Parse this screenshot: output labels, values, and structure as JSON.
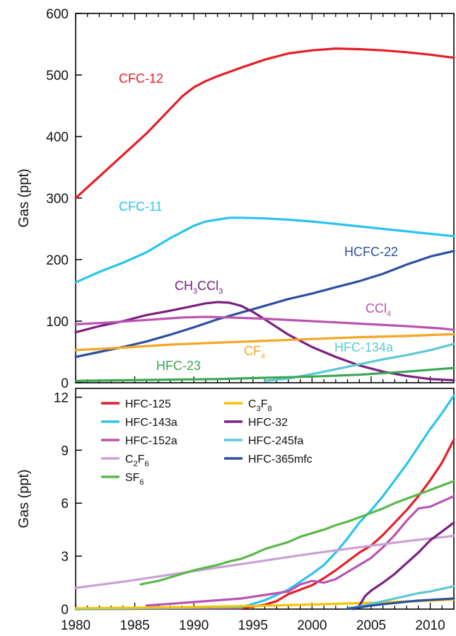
{
  "chart_data": [
    {
      "type": "line",
      "ylabel": "Gas (ppt)",
      "xlim": [
        1980,
        2012
      ],
      "ylim": [
        0,
        600
      ],
      "yticks": [
        0,
        100,
        200,
        300,
        400,
        500,
        600
      ],
      "grid": false,
      "legend": "inline labels",
      "series": [
        {
          "name": "CFC-12",
          "label_parts": [
            {
              "t": "CFC-12"
            }
          ],
          "color": "#e41e26",
          "x": [
            1980,
            1982,
            1984,
            1986,
            1988,
            1989,
            1990,
            1991,
            1992,
            1994,
            1996,
            1998,
            2000,
            2002,
            2004,
            2006,
            2008,
            2010,
            2012
          ],
          "y": [
            300,
            335,
            370,
            405,
            445,
            465,
            480,
            490,
            498,
            512,
            525,
            535,
            540,
            543,
            542,
            540,
            537,
            533,
            528
          ]
        },
        {
          "name": "CFC-11",
          "label_parts": [
            {
              "t": "CFC-11"
            }
          ],
          "color": "#29c4ee",
          "x": [
            1980,
            1982,
            1984,
            1986,
            1988,
            1990,
            1991,
            1992,
            1993,
            1994,
            1996,
            1998,
            2000,
            2002,
            2004,
            2006,
            2008,
            2010,
            2012
          ],
          "y": [
            163,
            180,
            195,
            212,
            235,
            255,
            262,
            265,
            268,
            268,
            267,
            265,
            262,
            258,
            254,
            250,
            246,
            242,
            238
          ]
        },
        {
          "name": "HCFC-22",
          "label_parts": [
            {
              "t": "HCFC-22"
            }
          ],
          "color": "#2b4fa0",
          "x": [
            1980,
            1982,
            1984,
            1986,
            1988,
            1990,
            1992,
            1994,
            1996,
            1998,
            2000,
            2002,
            2004,
            2006,
            2008,
            2010,
            2012
          ],
          "y": [
            42,
            50,
            58,
            67,
            78,
            90,
            103,
            114,
            125,
            136,
            145,
            155,
            165,
            177,
            192,
            205,
            214
          ]
        },
        {
          "name": "CH3CCl3",
          "label_parts": [
            {
              "t": "CH"
            },
            {
              "t": "3",
              "sub": true
            },
            {
              "t": "CCl"
            },
            {
              "t": "3",
              "sub": true
            }
          ],
          "color": "#7b1f80",
          "x": [
            1980,
            1982,
            1984,
            1986,
            1988,
            1990,
            1991,
            1992,
            1993,
            1994,
            1995,
            1996,
            1998,
            2000,
            2002,
            2004,
            2006,
            2008,
            2010,
            2012
          ],
          "y": [
            82,
            92,
            100,
            110,
            117,
            125,
            129,
            131,
            130,
            125,
            115,
            103,
            78,
            58,
            42,
            28,
            18,
            11,
            6,
            4
          ]
        },
        {
          "name": "CCl4",
          "label_parts": [
            {
              "t": "CCl"
            },
            {
              "t": "4",
              "sub": true
            }
          ],
          "color": "#b854b0",
          "x": [
            1980,
            1983,
            1986,
            1989,
            1991,
            1993,
            1996,
            1999,
            2002,
            2005,
            2008,
            2011,
            2012
          ],
          "y": [
            95,
            98,
            102,
            106,
            107,
            106,
            104,
            101,
            98,
            95,
            92,
            88,
            86
          ]
        },
        {
          "name": "CF4",
          "label_parts": [
            {
              "t": "CF"
            },
            {
              "t": "4",
              "sub": true
            }
          ],
          "color": "#f5a623",
          "x": [
            1980,
            1984,
            1988,
            1992,
            1996,
            2000,
            2004,
            2008,
            2012
          ],
          "y": [
            53,
            57,
            62,
            65,
            68,
            71,
            74,
            76,
            79
          ]
        },
        {
          "name": "HFC-134a",
          "label_parts": [
            {
              "t": "HFC-134a"
            }
          ],
          "color": "#5bc8d4",
          "x": [
            1996,
            1998,
            2000,
            2002,
            2004,
            2006,
            2008,
            2010,
            2012
          ],
          "y": [
            3,
            7,
            14,
            22,
            30,
            38,
            45,
            53,
            63
          ]
        },
        {
          "name": "HFC-23",
          "label_parts": [
            {
              "t": "HFC-23"
            }
          ],
          "color": "#3aa655",
          "x": [
            1980,
            1984,
            1988,
            1992,
            1996,
            2000,
            2004,
            2008,
            2012
          ],
          "y": [
            3,
            4,
            5,
            6,
            8,
            10,
            13,
            18,
            24
          ]
        }
      ]
    },
    {
      "type": "line",
      "ylabel": "Gas (ppt)",
      "xlim": [
        1980,
        2012
      ],
      "ylim": [
        0,
        12.5
      ],
      "yticks": [
        0,
        3,
        6,
        9,
        12
      ],
      "xticks": [
        1980,
        1985,
        1990,
        1995,
        2000,
        2005,
        2010
      ],
      "grid": false,
      "legend": "top-left",
      "series": [
        {
          "name": "HFC-125",
          "label_parts": [
            {
              "t": "HFC-125"
            }
          ],
          "color": "#e41e26",
          "x": [
            1980,
            1994,
            1996,
            1997,
            1998,
            1999,
            2000,
            2001,
            2002,
            2003,
            2004,
            2005,
            2006,
            2007,
            2008,
            2009,
            2010,
            2011,
            2012
          ],
          "y": [
            0,
            0.05,
            0.25,
            0.45,
            0.85,
            1.1,
            1.35,
            1.75,
            2.2,
            2.7,
            3.2,
            3.6,
            4.2,
            4.9,
            5.6,
            6.4,
            7.3,
            8.3,
            9.6
          ]
        },
        {
          "name": "HFC-143a",
          "label_parts": [
            {
              "t": "HFC-143a"
            }
          ],
          "color": "#29c4ee",
          "x": [
            1980,
            1994,
            1996,
            1998,
            2000,
            2001,
            2002,
            2003,
            2004,
            2005,
            2006,
            2007,
            2008,
            2009,
            2010,
            2011,
            2012
          ],
          "y": [
            0,
            0.1,
            0.5,
            1.1,
            2.0,
            2.5,
            3.2,
            4.0,
            4.9,
            5.6,
            6.4,
            7.3,
            8.2,
            9.2,
            10.2,
            11.1,
            12.1
          ]
        },
        {
          "name": "HFC-152a",
          "label_parts": [
            {
              "t": "HFC-152a"
            }
          ],
          "color": "#b854b0",
          "x": [
            1986,
            1988,
            1990,
            1992,
            1994,
            1996,
            1998,
            1999,
            2000,
            2001,
            2002,
            2003,
            2004,
            2005,
            2006,
            2007,
            2008,
            2009,
            2010,
            2011,
            2012
          ],
          "y": [
            0.2,
            0.3,
            0.4,
            0.5,
            0.6,
            0.8,
            1.0,
            1.4,
            1.6,
            1.5,
            1.7,
            2.1,
            2.5,
            2.9,
            3.5,
            4.2,
            5.0,
            5.7,
            5.8,
            6.1,
            6.4
          ]
        },
        {
          "name": "C2F6",
          "label_parts": [
            {
              "t": "C"
            },
            {
              "t": "2",
              "sub": true
            },
            {
              "t": "F"
            },
            {
              "t": "6",
              "sub": true
            }
          ],
          "color": "#c9a0d6",
          "x": [
            1980,
            1984,
            1988,
            1992,
            1996,
            2000,
            2004,
            2008,
            2012
          ],
          "y": [
            1.2,
            1.55,
            1.95,
            2.35,
            2.75,
            3.15,
            3.5,
            3.85,
            4.15
          ]
        },
        {
          "name": "SF6",
          "label_parts": [
            {
              "t": "SF"
            },
            {
              "t": "6",
              "sub": true
            }
          ],
          "color": "#5ab848",
          "x": [
            1985.5,
            1987,
            1988,
            1989,
            1990,
            1991,
            1992,
            1993,
            1994,
            1995,
            1996,
            1997,
            1998,
            1999,
            2000,
            2001,
            2002,
            2003,
            2004,
            2005,
            2006,
            2007,
            2008,
            2009,
            2010,
            2011,
            2012
          ],
          "y": [
            1.4,
            1.6,
            1.8,
            2.0,
            2.2,
            2.35,
            2.5,
            2.7,
            2.85,
            3.1,
            3.4,
            3.6,
            3.8,
            4.1,
            4.3,
            4.5,
            4.75,
            4.95,
            5.2,
            5.45,
            5.7,
            6.0,
            6.25,
            6.5,
            6.75,
            7.0,
            7.25
          ]
        },
        {
          "name": "C3F8",
          "label_parts": [
            {
              "t": "C"
            },
            {
              "t": "3",
              "sub": true
            },
            {
              "t": "F"
            },
            {
              "t": "8",
              "sub": true
            }
          ],
          "color": "#f5c400",
          "x": [
            1980,
            1985,
            1990,
            1995,
            2000,
            2005,
            2010,
            2012
          ],
          "y": [
            0.05,
            0.08,
            0.12,
            0.18,
            0.26,
            0.36,
            0.48,
            0.55
          ]
        },
        {
          "name": "HFC-32",
          "label_parts": [
            {
              "t": "HFC-32"
            }
          ],
          "color": "#7b1f80",
          "x": [
            2003.5,
            2004,
            2004.5,
            2005,
            2006,
            2007,
            2008,
            2009,
            2010,
            2011,
            2012
          ],
          "y": [
            0.0,
            0.2,
            0.75,
            1.05,
            1.5,
            2.0,
            2.6,
            3.2,
            3.9,
            4.4,
            4.9
          ]
        },
        {
          "name": "HFC-245fa",
          "label_parts": [
            {
              "t": "HFC-245fa"
            }
          ],
          "color": "#5bc8d4",
          "x": [
            2003,
            2004,
            2005,
            2006,
            2007,
            2008,
            2009,
            2010,
            2011,
            2012
          ],
          "y": [
            0.05,
            0.15,
            0.3,
            0.45,
            0.6,
            0.75,
            0.9,
            1.0,
            1.15,
            1.3
          ]
        },
        {
          "name": "HFC-365mfc",
          "label_parts": [
            {
              "t": "HFC-365mfc"
            }
          ],
          "color": "#2b4fa0",
          "x": [
            2003,
            2004,
            2005,
            2006,
            2007,
            2008,
            2009,
            2010,
            2011,
            2012
          ],
          "y": [
            0.02,
            0.1,
            0.2,
            0.28,
            0.35,
            0.42,
            0.48,
            0.52,
            0.56,
            0.6
          ]
        }
      ]
    }
  ]
}
